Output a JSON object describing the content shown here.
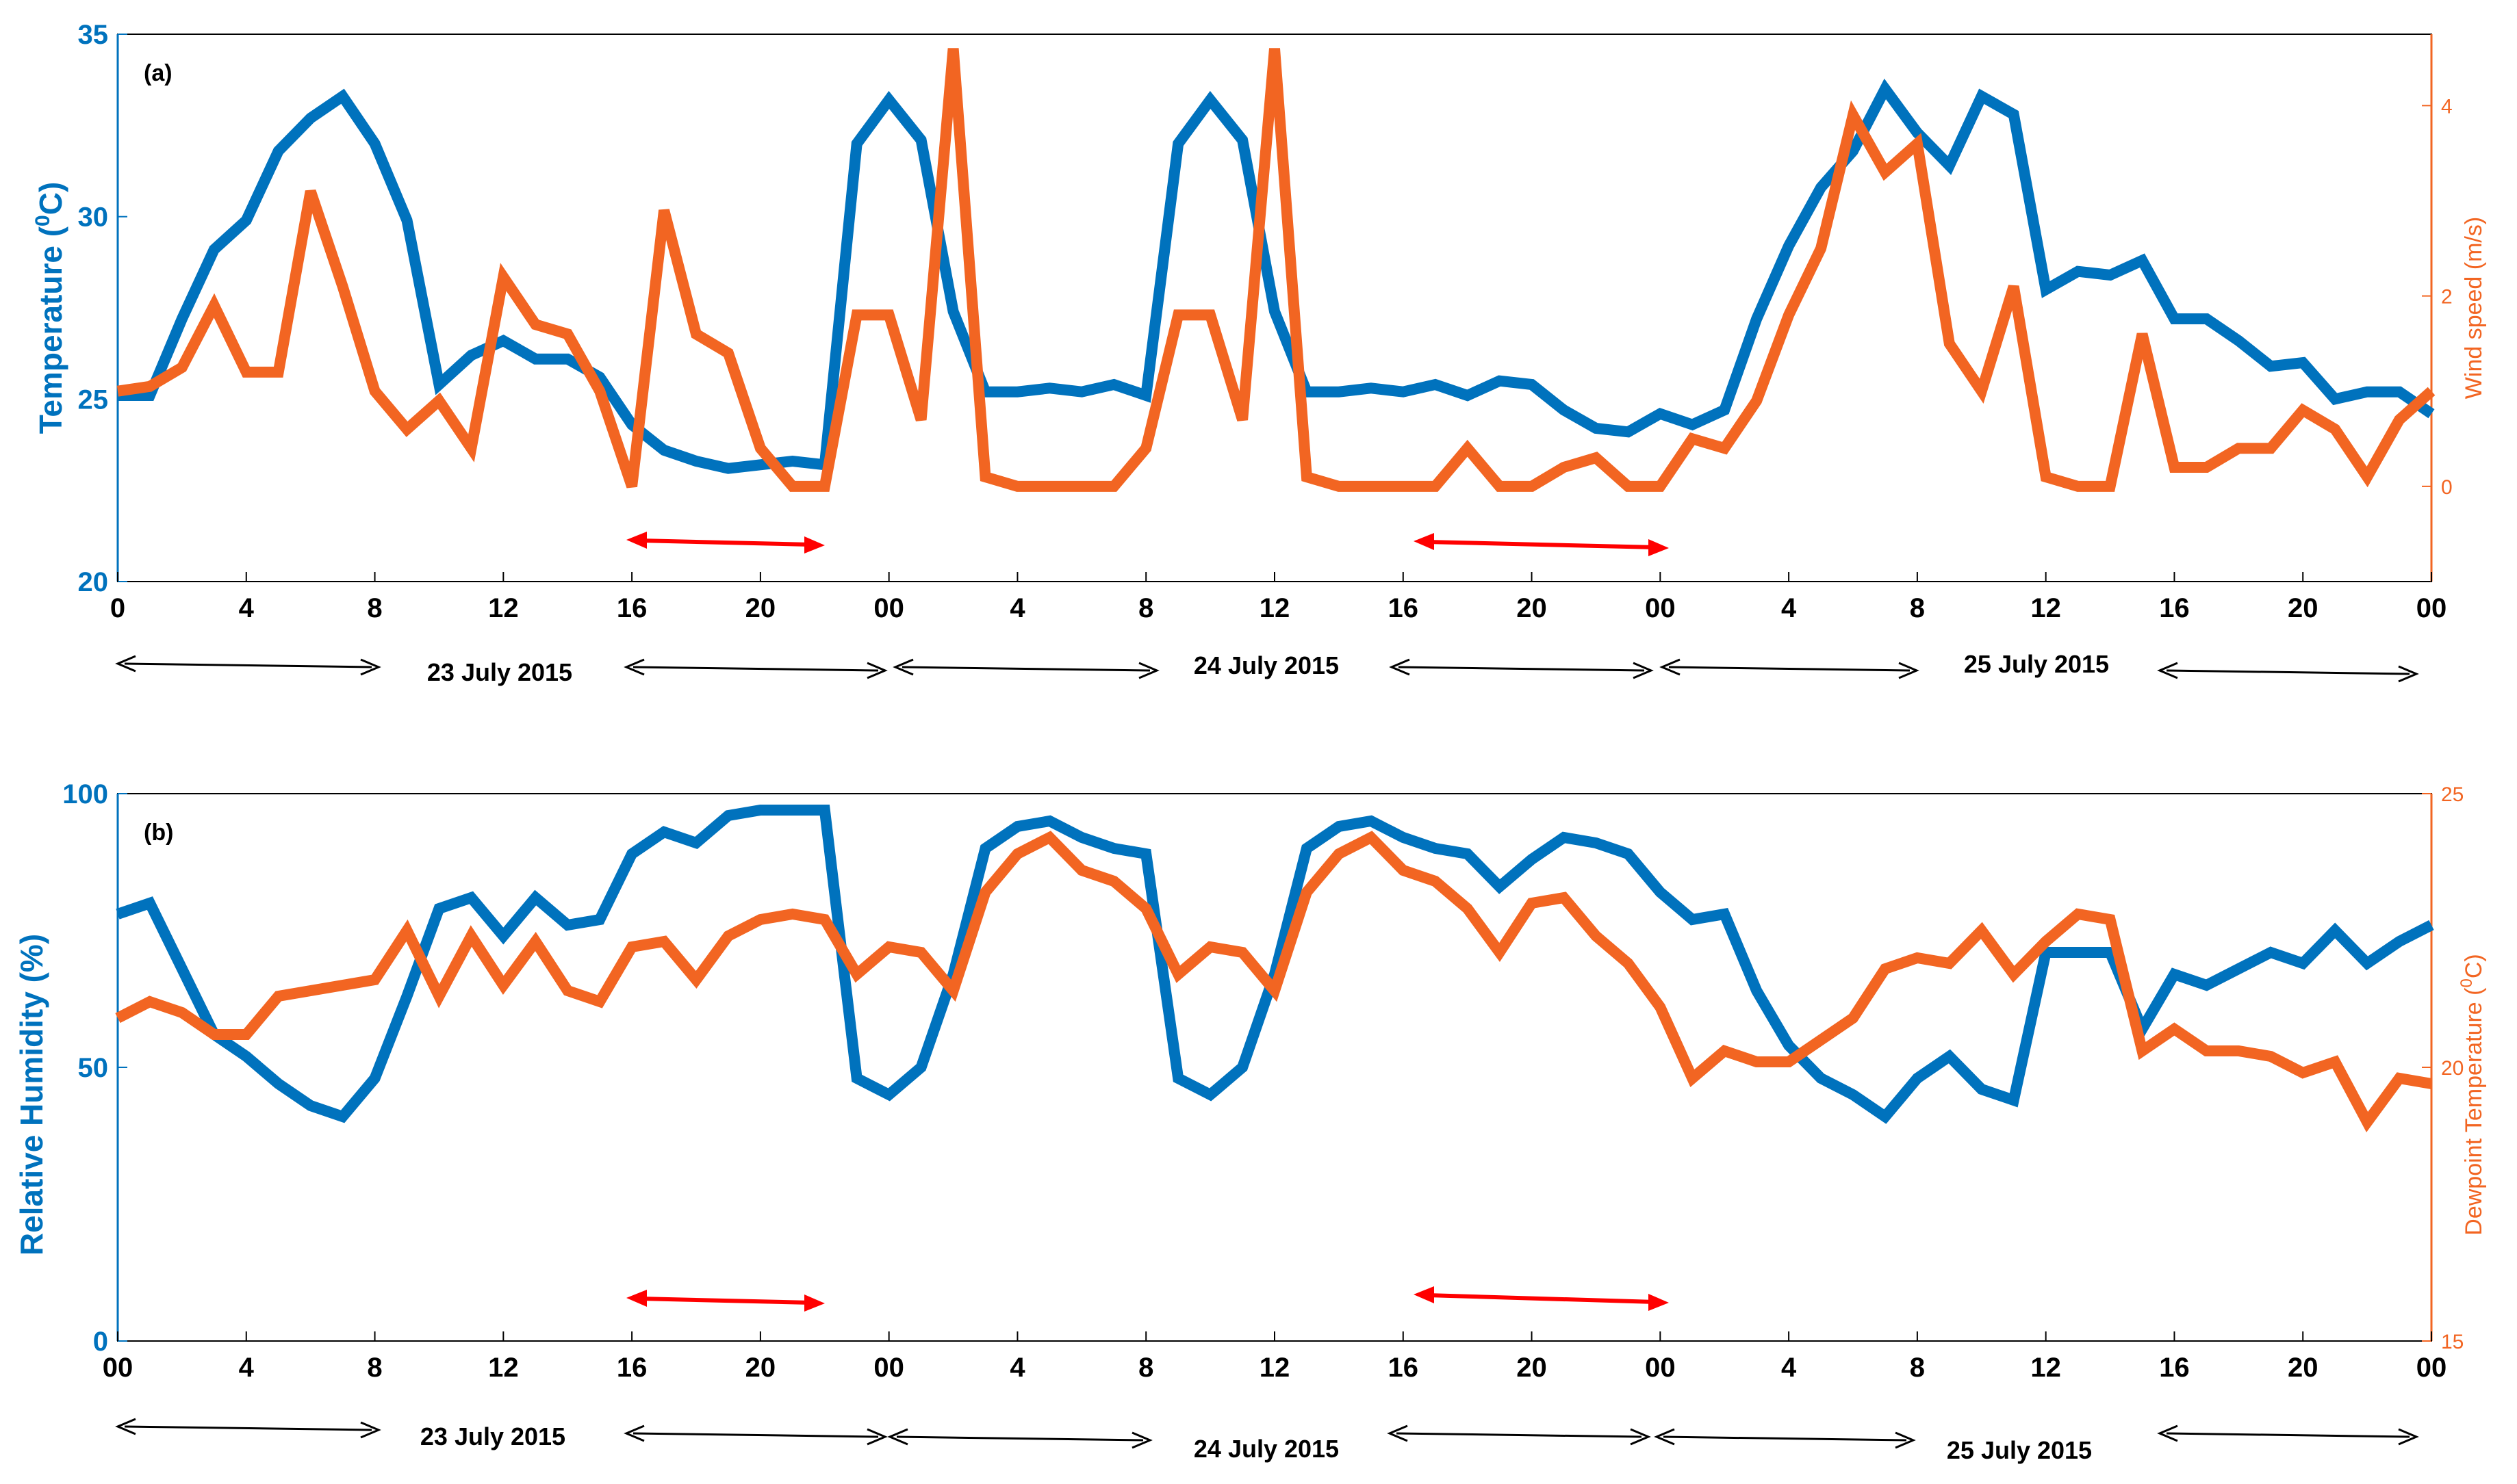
{
  "colors": {
    "primary": "#0072BD",
    "secondary": "#F26522",
    "highlight": "#FF0000",
    "axis": "#000000"
  },
  "chart_data": [
    {
      "type": "line",
      "panel_label": "(a)",
      "x_tick_labels": [
        "0",
        "4",
        "8",
        "12",
        "16",
        "20",
        "00",
        "4",
        "8",
        "12",
        "16",
        "20",
        "00",
        "4",
        "8",
        "12",
        "16",
        "20",
        "00"
      ],
      "date_labels": [
        "23 July 2015",
        "24 July 2015",
        "25 July 2015"
      ],
      "left_axis": {
        "label_main": "Temperature (",
        "label_sup": "0",
        "label_end": "C)",
        "ylim": [
          20,
          35
        ],
        "ticks": [
          "20",
          "25",
          "30",
          "35"
        ]
      },
      "right_axis": {
        "label": "Wind speed (m/s)",
        "ylim": [
          -1,
          4.75
        ],
        "ticks": [
          "0",
          "2",
          "4"
        ]
      },
      "series": [
        {
          "name": "Temperature",
          "axis": "left",
          "color": "#0072BD",
          "values": [
            25.1,
            25.1,
            27.2,
            29.1,
            29.9,
            31.8,
            32.7,
            33.3,
            32.0,
            29.9,
            25.4,
            26.2,
            26.6,
            26.1,
            26.1,
            25.6,
            24.3,
            23.6,
            23.3,
            23.1,
            23.2,
            23.3,
            23.2,
            32.0,
            33.2,
            32.1,
            27.4,
            25.2,
            25.2,
            25.3,
            25.2,
            25.4,
            25.1,
            32.0,
            33.2,
            32.1,
            27.4,
            25.2,
            25.2,
            25.3,
            25.2,
            25.4,
            25.1,
            25.5,
            25.4,
            24.7,
            24.2,
            24.1,
            24.6,
            24.3,
            24.7,
            27.2,
            29.2,
            30.8,
            31.8,
            33.5,
            32.3,
            31.4,
            33.3,
            32.8,
            28.0,
            28.5,
            28.4,
            28.8,
            27.2,
            27.2,
            26.6,
            25.9,
            26.0,
            25.0,
            25.2,
            25.2,
            24.6
          ]
        },
        {
          "name": "Wind speed",
          "axis": "right",
          "color": "#F26522",
          "values": [
            1.0,
            1.05,
            1.25,
            1.9,
            1.2,
            1.2,
            3.1,
            2.1,
            1.0,
            0.6,
            0.9,
            0.4,
            2.2,
            1.7,
            1.6,
            1.0,
            0.0,
            2.9,
            1.6,
            1.4,
            0.4,
            0.0,
            0.0,
            1.8,
            1.8,
            0.7,
            4.6,
            0.1,
            0.0,
            0.0,
            0.0,
            0.0,
            0.4,
            1.8,
            1.8,
            0.7,
            4.6,
            0.1,
            0.0,
            0.0,
            0.0,
            0.0,
            0.4,
            0.0,
            0.0,
            0.2,
            0.3,
            0.0,
            0.0,
            0.5,
            0.4,
            0.9,
            1.8,
            2.5,
            3.9,
            3.3,
            3.6,
            1.5,
            1.0,
            2.1,
            0.1,
            0.0,
            0.0,
            1.6,
            0.2,
            0.2,
            0.4,
            0.4,
            0.8,
            0.6,
            0.1,
            0.7,
            1.0
          ]
        }
      ]
    },
    {
      "type": "line",
      "panel_label": "(b)",
      "x_tick_labels": [
        "00",
        "4",
        "8",
        "12",
        "16",
        "20",
        "00",
        "4",
        "8",
        "12",
        "16",
        "20",
        "00",
        "4",
        "8",
        "12",
        "16",
        "20",
        "00"
      ],
      "date_labels": [
        "23 July 2015",
        "24 July 2015",
        "25 July 2015"
      ],
      "left_axis": {
        "label_main": "Relative Humidity (%)",
        "ylim": [
          0,
          100
        ],
        "ticks": [
          "0",
          "50",
          "100"
        ]
      },
      "right_axis": {
        "label_main": "Dewpoint Temperature (",
        "label_sup": "0",
        "label_end": "C)",
        "ylim": [
          15,
          25
        ],
        "ticks": [
          "15",
          "20",
          "25"
        ]
      },
      "series": [
        {
          "name": "Relative Humidity",
          "axis": "left",
          "color": "#0072BD",
          "values": [
            78,
            80,
            68,
            56,
            52,
            47,
            43,
            41,
            48,
            63,
            79,
            81,
            74,
            81,
            76,
            77,
            89,
            93,
            91,
            96,
            97,
            97,
            97,
            48,
            45,
            50,
            67,
            90,
            94,
            95,
            92,
            90,
            89,
            48,
            45,
            50,
            67,
            90,
            94,
            95,
            92,
            90,
            89,
            83,
            88,
            92,
            91,
            89,
            82,
            77,
            78,
            64,
            54,
            48,
            45,
            41,
            48,
            52,
            46,
            44,
            71,
            71,
            71,
            57,
            67,
            65,
            68,
            71,
            69,
            75,
            69,
            73,
            76
          ]
        },
        {
          "name": "Dewpoint Temperature",
          "axis": "right",
          "color": "#F26522",
          "values": [
            20.9,
            21.2,
            21.0,
            20.6,
            20.6,
            21.3,
            21.4,
            21.5,
            21.6,
            22.5,
            21.3,
            22.4,
            21.5,
            22.3,
            21.4,
            21.2,
            22.2,
            22.3,
            21.6,
            22.4,
            22.7,
            22.8,
            22.7,
            21.7,
            22.2,
            22.1,
            21.4,
            23.2,
            23.9,
            24.2,
            23.6,
            23.4,
            22.9,
            21.7,
            22.2,
            22.1,
            21.4,
            23.2,
            23.9,
            24.2,
            23.6,
            23.4,
            22.9,
            22.1,
            23.0,
            23.1,
            22.4,
            21.9,
            21.1,
            19.8,
            20.3,
            20.1,
            20.1,
            20.5,
            20.9,
            21.8,
            22.0,
            21.9,
            22.5,
            21.7,
            22.3,
            22.8,
            22.7,
            20.3,
            20.7,
            20.3,
            20.3,
            20.2,
            19.9,
            20.1,
            19.0,
            19.8,
            19.7
          ]
        }
      ]
    }
  ]
}
